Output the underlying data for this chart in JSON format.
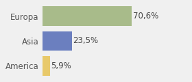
{
  "categories": [
    "America",
    "Asia",
    "Europa"
  ],
  "values": [
    5.9,
    23.5,
    70.6
  ],
  "bar_colors": [
    "#e8c96a",
    "#6b7fbf",
    "#a8bb8a"
  ],
  "labels": [
    "5,9%",
    "23,5%",
    "70,6%"
  ],
  "background_color": "#f0f0f0",
  "xlim": [
    0,
    100
  ],
  "bar_height": 0.78,
  "label_fontsize": 8.5,
  "tick_fontsize": 8.5,
  "figsize": [
    2.8,
    1.2
  ],
  "dpi": 100
}
